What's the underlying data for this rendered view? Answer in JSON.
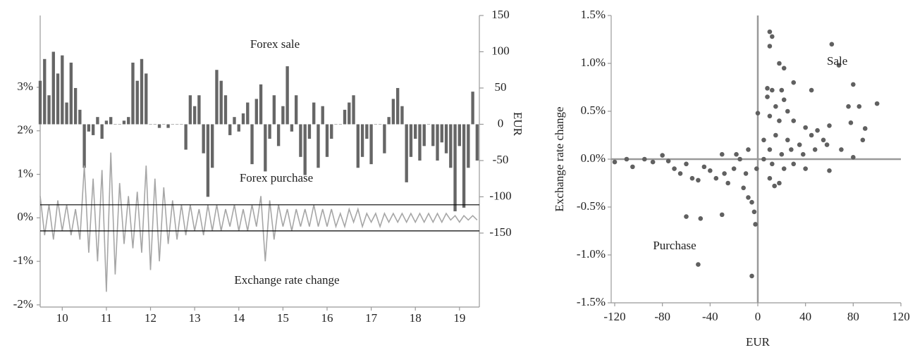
{
  "chart_data": [
    {
      "type": "combo",
      "annotations": [
        "Forex sale",
        "Forex purchase",
        "Exchange rate change"
      ],
      "y2label": "EUR",
      "x": [
        9.5,
        9.6,
        9.7,
        9.8,
        9.9,
        10.0,
        10.1,
        10.2,
        10.3,
        10.4,
        10.5,
        10.6,
        10.7,
        10.8,
        10.9,
        11.0,
        11.1,
        11.2,
        11.3,
        11.4,
        11.5,
        11.6,
        11.7,
        11.8,
        11.9,
        12.0,
        12.1,
        12.2,
        12.3,
        12.4,
        12.5,
        12.6,
        12.7,
        12.8,
        12.9,
        13.0,
        13.1,
        13.2,
        13.3,
        13.4,
        13.5,
        13.6,
        13.7,
        13.8,
        13.9,
        14.0,
        14.1,
        14.2,
        14.3,
        14.4,
        14.5,
        14.6,
        14.7,
        14.8,
        14.9,
        15.0,
        15.1,
        15.2,
        15.3,
        15.4,
        15.5,
        15.6,
        15.7,
        15.8,
        15.9,
        16.0,
        16.1,
        16.2,
        16.3,
        16.4,
        16.5,
        16.6,
        16.7,
        16.8,
        16.9,
        17.0,
        17.1,
        17.2,
        17.3,
        17.4,
        17.5,
        17.6,
        17.7,
        17.8,
        17.9,
        18.0,
        18.1,
        18.2,
        18.3,
        18.4,
        18.5,
        18.6,
        18.7,
        18.8,
        18.9,
        19.0,
        19.1,
        19.2,
        19.3,
        19.4
      ],
      "series": [
        {
          "kind": "bar",
          "axis": "y2",
          "color": "#666666",
          "values": [
            60,
            90,
            40,
            100,
            70,
            95,
            30,
            85,
            50,
            20,
            -60,
            -10,
            -15,
            10,
            -20,
            5,
            10,
            0,
            0,
            5,
            10,
            85,
            60,
            90,
            70,
            0,
            0,
            -5,
            0,
            -5,
            0,
            0,
            0,
            -35,
            40,
            25,
            40,
            -40,
            -100,
            -60,
            75,
            60,
            40,
            -15,
            10,
            -10,
            15,
            30,
            -55,
            35,
            55,
            -65,
            -20,
            40,
            -30,
            25,
            80,
            -10,
            40,
            -45,
            -70,
            -20,
            30,
            -60,
            25,
            -45,
            -20,
            0,
            0,
            20,
            30,
            40,
            -60,
            -45,
            -20,
            -55,
            0,
            0,
            -40,
            10,
            35,
            50,
            25,
            -80,
            -45,
            -20,
            -50,
            -30,
            0,
            -30,
            -50,
            -25,
            -40,
            -60,
            -120,
            -30,
            -115,
            -60,
            45,
            -50
          ]
        },
        {
          "kind": "line",
          "axis": "y",
          "color": "#a6a6a6",
          "values": [
            0.5,
            -0.4,
            0.3,
            -0.5,
            0.4,
            -0.3,
            0.3,
            -0.4,
            0.2,
            -0.5,
            1.2,
            -0.8,
            0.9,
            -1.0,
            1.1,
            -1.7,
            1.5,
            -1.3,
            0.8,
            -0.6,
            0.5,
            -0.7,
            0.6,
            -0.8,
            1.2,
            -1.2,
            0.9,
            -1.0,
            0.7,
            -0.6,
            0.4,
            -0.5,
            0.3,
            -0.4,
            0.3,
            -0.3,
            0.2,
            -0.4,
            0.3,
            -0.3,
            0.3,
            -0.3,
            0.2,
            -0.2,
            0.3,
            -0.3,
            0.2,
            -0.3,
            0.3,
            -0.2,
            0.5,
            -1.0,
            0.4,
            -0.5,
            0.3,
            -0.2,
            0.2,
            -0.3,
            0.2,
            -0.2,
            0.2,
            -0.2,
            0.3,
            -0.2,
            0.2,
            -0.2,
            0.2,
            -0.2,
            0.1,
            -0.2,
            0.2,
            -0.1,
            0.2,
            -0.2,
            0.1,
            -0.1,
            0.1,
            -0.2,
            0.1,
            -0.1,
            0.1,
            -0.1,
            0.1,
            -0.1,
            0.1,
            -0.1,
            0.1,
            -0.1,
            0.1,
            -0.1,
            0.1,
            -0.1,
            0.1,
            -0.05,
            0.05,
            -0.1,
            0.05,
            -0.05,
            0.05,
            -0.05
          ]
        }
      ],
      "hlines": [
        0.3,
        -0.3
      ],
      "hline_color": "#000000",
      "xlim": [
        9.5,
        19.45
      ],
      "xticks": [
        10,
        11,
        12,
        13,
        14,
        15,
        16,
        17,
        18,
        19
      ],
      "ylim": [
        -2.05,
        4.65
      ],
      "yticks": [
        {
          "value": 3,
          "label": "3%"
        },
        {
          "value": 2,
          "label": "2%"
        },
        {
          "value": 1,
          "label": "1%"
        },
        {
          "value": 0,
          "label": "0%"
        },
        {
          "value": -1,
          "label": "-1%"
        },
        {
          "value": -2,
          "label": "-2%"
        }
      ],
      "y2lim": [
        -252,
        150
      ],
      "y2ticks": [
        150,
        100,
        50,
        0,
        -50,
        -100,
        -150
      ]
    },
    {
      "type": "scatter",
      "annotations": [
        "Sale",
        "Purchase"
      ],
      "xlabel": "EUR",
      "ylabel": "Exchange rate change",
      "color": "#606060",
      "x": [
        10,
        12,
        10,
        18,
        22,
        62,
        68,
        80,
        8,
        12,
        20,
        22,
        30,
        45,
        8,
        15,
        25,
        10,
        18,
        30,
        40,
        50,
        60,
        76,
        85,
        100,
        90,
        78,
        88,
        70,
        55,
        45,
        35,
        25,
        15,
        5,
        10,
        20,
        28,
        38,
        48,
        58,
        80,
        12,
        22,
        30,
        40,
        60,
        10,
        14,
        18,
        5,
        0,
        -120,
        -110,
        -105,
        -95,
        -88,
        -80,
        -75,
        -70,
        -65,
        -60,
        -55,
        -50,
        -45,
        -40,
        -35,
        -30,
        -28,
        -25,
        -20,
        -15,
        -12,
        -10,
        -8,
        -5,
        -3,
        -2,
        -1,
        -60,
        -48,
        -30,
        -50,
        -5,
        -18,
        -8
      ],
      "values": [
        1.33,
        1.28,
        1.18,
        1.0,
        0.95,
        1.2,
        0.98,
        0.78,
        0.74,
        0.72,
        0.72,
        0.62,
        0.8,
        0.72,
        0.65,
        0.55,
        0.5,
        0.45,
        0.4,
        0.4,
        0.33,
        0.3,
        0.35,
        0.55,
        0.55,
        0.58,
        0.32,
        0.38,
        0.2,
        0.1,
        0.2,
        0.25,
        0.15,
        0.2,
        0.25,
        0.2,
        0.1,
        0.05,
        0.1,
        0.05,
        0.1,
        0.15,
        0.02,
        -0.05,
        -0.1,
        -0.05,
        -0.1,
        -0.12,
        -0.2,
        -0.28,
        -0.25,
        0.0,
        0.48,
        -0.03,
        0.0,
        -0.08,
        0.0,
        -0.03,
        0.04,
        -0.02,
        -0.1,
        -0.15,
        -0.05,
        -0.2,
        -0.22,
        -0.08,
        -0.12,
        -0.2,
        0.05,
        -0.15,
        -0.25,
        -0.1,
        0.0,
        -0.3,
        -0.15,
        -0.4,
        -0.45,
        -0.55,
        -0.68,
        -0.1,
        -0.6,
        -0.62,
        -0.58,
        -1.1,
        -1.22,
        0.05,
        0.1
      ],
      "xlim": [
        -120,
        120
      ],
      "xticks": [
        -120,
        -80,
        -40,
        0,
        40,
        80,
        120
      ],
      "ylim": [
        -1.5,
        1.5
      ],
      "yticks": [
        {
          "value": 1.5,
          "label": "1.5%"
        },
        {
          "value": 1.0,
          "label": "1.0%"
        },
        {
          "value": 0.5,
          "label": "0.5%"
        },
        {
          "value": 0,
          "label": "0.0%"
        },
        {
          "value": -0.5,
          "label": "-0.5%"
        },
        {
          "value": -1.0,
          "label": "-1.0%"
        },
        {
          "value": -1.5,
          "label": "-1.5%"
        }
      ]
    }
  ]
}
